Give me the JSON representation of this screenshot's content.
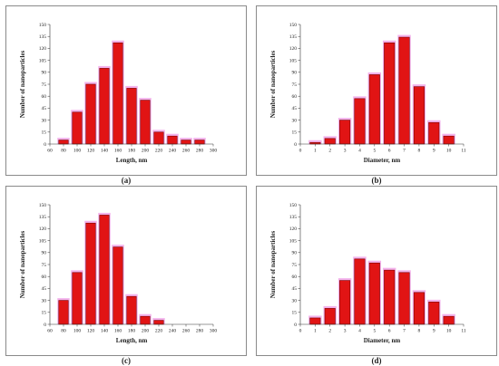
{
  "colors": {
    "bar_fill": "#e11414",
    "bar_stroke": "#7a0000",
    "bar_shadow": "#f3b3ec",
    "axis": "#333333"
  },
  "chart_data": [
    {
      "id": "a",
      "type": "bar",
      "caption": "(a)",
      "xlabel": "Length, nm",
      "ylabel": "Number of nanoparticles",
      "xlim": [
        60,
        300
      ],
      "ylim": [
        0,
        150
      ],
      "xticks": [
        60,
        80,
        100,
        120,
        140,
        160,
        180,
        200,
        220,
        240,
        260,
        280,
        300
      ],
      "yticks": [
        0,
        15,
        30,
        45,
        60,
        75,
        90,
        105,
        120,
        135,
        150
      ],
      "bar_width": 14,
      "x": [
        80,
        100,
        120,
        140,
        160,
        180,
        200,
        220,
        240,
        260,
        280
      ],
      "values": [
        5,
        40,
        75,
        95,
        127,
        70,
        55,
        15,
        10,
        5,
        5
      ]
    },
    {
      "id": "b",
      "type": "bar",
      "caption": "(b)",
      "xlabel": "Diameter, nm",
      "ylabel": "Number of nanoparticles",
      "xlim": [
        0,
        11
      ],
      "ylim": [
        0,
        150
      ],
      "xticks": [
        0,
        1,
        2,
        3,
        4,
        5,
        6,
        7,
        8,
        9,
        10,
        11
      ],
      "yticks": [
        0,
        15,
        30,
        45,
        60,
        75,
        90,
        105,
        120,
        135,
        150
      ],
      "bar_width": 0.7,
      "x": [
        1,
        2,
        3,
        4,
        5,
        6,
        7,
        8,
        9,
        10
      ],
      "values": [
        2,
        7,
        30,
        57,
        87,
        127,
        134,
        72,
        27,
        10
      ]
    },
    {
      "id": "c",
      "type": "bar",
      "caption": "(c)",
      "xlabel": "Length, nm",
      "ylabel": "Number of nanoparticles",
      "xlim": [
        60,
        300
      ],
      "ylim": [
        0,
        150
      ],
      "xticks": [
        60,
        80,
        100,
        120,
        140,
        160,
        180,
        200,
        220,
        240,
        260,
        280,
        300
      ],
      "yticks": [
        0,
        15,
        30,
        45,
        60,
        75,
        90,
        105,
        120,
        135,
        150
      ],
      "bar_width": 14,
      "x": [
        80,
        100,
        120,
        140,
        160,
        180,
        200,
        220
      ],
      "values": [
        30,
        65,
        127,
        137,
        97,
        35,
        10,
        5
      ]
    },
    {
      "id": "d",
      "type": "bar",
      "caption": "(d)",
      "xlabel": "Diameter, nm",
      "ylabel": "Number of nanoparticles",
      "xlim": [
        0,
        11
      ],
      "ylim": [
        0,
        150
      ],
      "xticks": [
        0,
        1,
        2,
        3,
        4,
        5,
        6,
        7,
        8,
        9,
        10,
        11
      ],
      "yticks": [
        0,
        15,
        30,
        45,
        60,
        75,
        90,
        105,
        120,
        135,
        150
      ],
      "bar_width": 0.7,
      "x": [
        1,
        2,
        3,
        4,
        5,
        6,
        7,
        8,
        9,
        10
      ],
      "values": [
        8,
        20,
        55,
        82,
        77,
        68,
        65,
        40,
        28,
        10
      ]
    }
  ]
}
